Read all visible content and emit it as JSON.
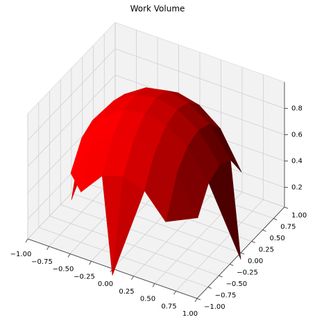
{
  "chart_data": {
    "type": "surface",
    "title": "Work Volume",
    "color": "#ff0000",
    "x": [
      -1,
      -0.75,
      -0.5,
      -0.25,
      0,
      0.25,
      0.5,
      0.75,
      1
    ],
    "y": [
      -1,
      -0.75,
      -0.5,
      -0.25,
      0,
      0.25,
      0.5,
      0.75,
      1
    ],
    "z": [
      [
        null,
        null,
        null,
        null,
        0,
        null,
        null,
        null,
        null
      ],
      [
        null,
        null,
        0.433,
        0.612,
        0.661,
        0.612,
        0.433,
        null,
        null
      ],
      [
        null,
        0.433,
        0.707,
        0.829,
        0.866,
        0.829,
        0.707,
        0.433,
        null
      ],
      [
        null,
        0.612,
        0.829,
        0.935,
        0.968,
        0.935,
        0.829,
        0.612,
        null
      ],
      [
        0,
        0.661,
        0.866,
        0.968,
        1,
        0.968,
        0.866,
        0.661,
        0
      ],
      [
        null,
        0.612,
        0.829,
        0.935,
        0.968,
        0.935,
        0.829,
        0.612,
        null
      ],
      [
        null,
        0.433,
        0.707,
        0.829,
        0.866,
        0.829,
        0.707,
        0.433,
        null
      ],
      [
        null,
        null,
        0.433,
        0.612,
        0.661,
        0.612,
        0.433,
        null,
        null
      ],
      [
        null,
        null,
        null,
        null,
        0,
        null,
        null,
        null,
        null
      ]
    ],
    "xlim": [
      -1,
      1
    ],
    "ylim": [
      -1,
      1
    ],
    "zlim": [
      0.05,
      1.0
    ],
    "xticks": [
      {
        "value": -1,
        "label": "−1.00"
      },
      {
        "value": -0.75,
        "label": "−0.75"
      },
      {
        "value": -0.5,
        "label": "−0.50"
      },
      {
        "value": -0.25,
        "label": "−0.25"
      },
      {
        "value": 0,
        "label": "0.00"
      },
      0.25,
      {
        "value": 0.5,
        "label": "0.50"
      },
      0.75,
      {
        "value": 1,
        "label": "1.00"
      }
    ],
    "yticks": [
      {
        "value": -1,
        "label": "−1.00"
      },
      {
        "value": -0.75,
        "label": "−0.75"
      },
      {
        "value": -0.5,
        "label": "−0.50"
      },
      {
        "value": -0.25,
        "label": "−0.25"
      },
      {
        "value": 0,
        "label": "0.00"
      },
      0.25,
      {
        "value": 0.5,
        "label": "0.50"
      },
      0.75,
      {
        "value": 1,
        "label": "1.00"
      }
    ],
    "zticks": [
      0.2,
      0.4,
      0.6,
      0.8
    ],
    "grid": true
  }
}
